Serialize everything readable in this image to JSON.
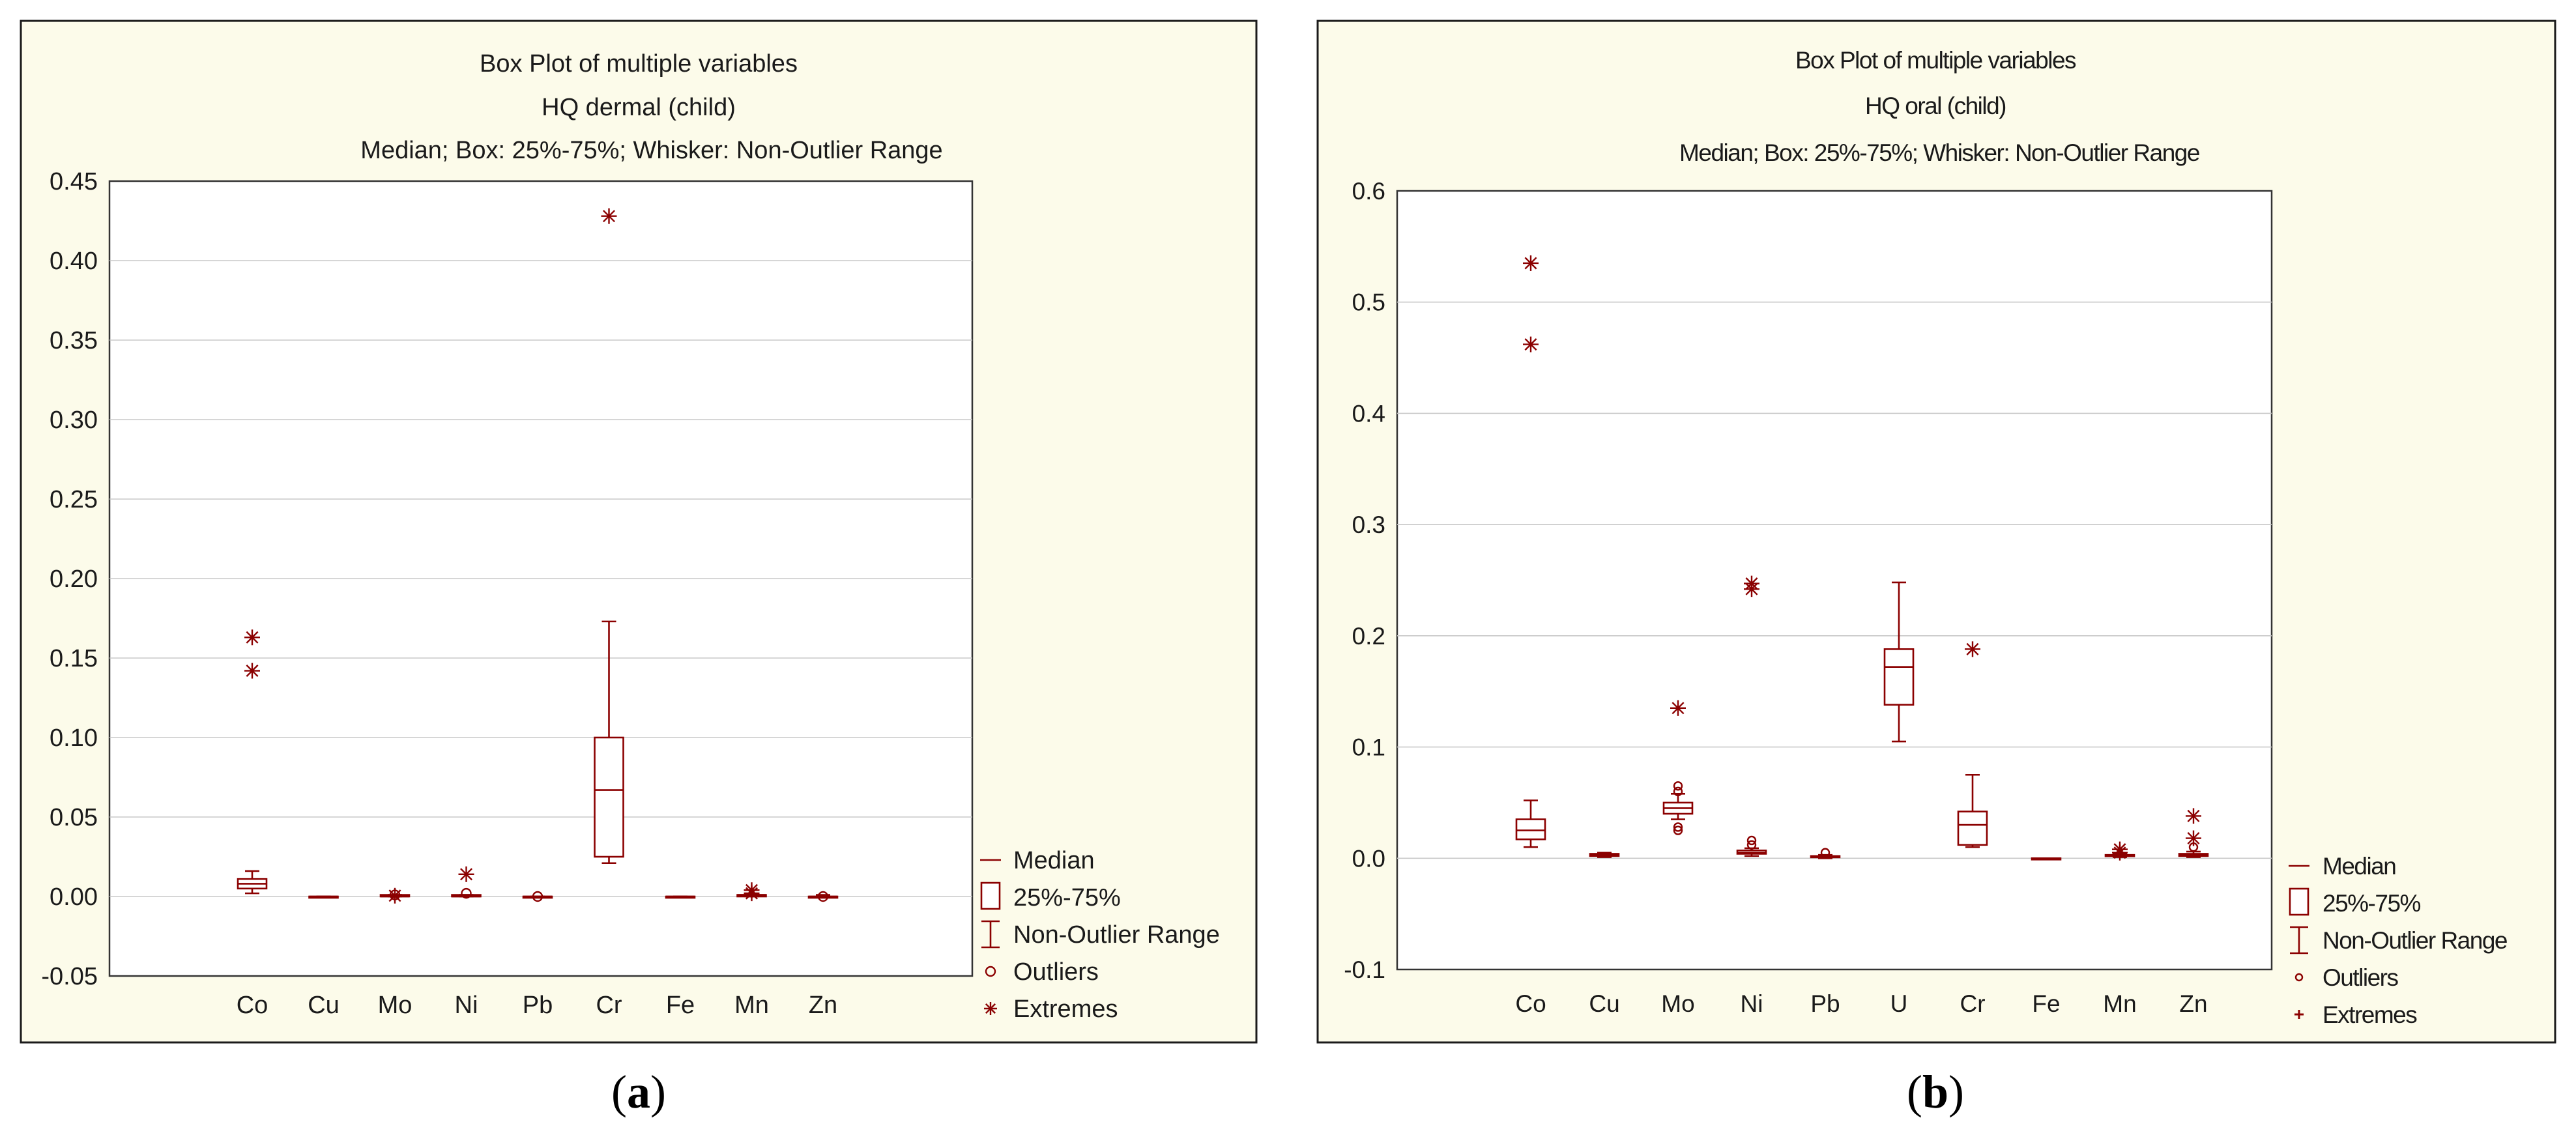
{
  "colors": {
    "series": "#8b0000",
    "panel_background": "#fcfbea",
    "grid": "#c8c8c8",
    "text": "#1a1a1a"
  },
  "captions": {
    "a": {
      "open": "(",
      "letter": "a",
      "close": ")"
    },
    "b": {
      "open": "(",
      "letter": "b",
      "close": ")"
    }
  },
  "chart_data": [
    {
      "type": "box",
      "panel": "a",
      "title": "Box Plot of multiple variables",
      "subtitle": "HQ dermal (child)",
      "description": "Median; Box: 25%-75%; Whisker: Non-Outlier Range",
      "xlabel": "",
      "ylabel": "",
      "ylim": [
        -0.05,
        0.45
      ],
      "yticks": [
        -0.05,
        0.0,
        0.05,
        0.1,
        0.15,
        0.2,
        0.25,
        0.3,
        0.35,
        0.4,
        0.45
      ],
      "ytick_labels": [
        "-0.05",
        "0.00",
        "0.05",
        "0.10",
        "0.15",
        "0.20",
        "0.25",
        "0.30",
        "0.35",
        "0.40",
        "0.45"
      ],
      "grid": true,
      "categories": [
        "Co",
        "Cu",
        "Mo",
        "Ni",
        "Pb",
        "Cr",
        "Fe",
        "Mn",
        "Zn"
      ],
      "boxes": [
        {
          "name": "Co",
          "min": 0.002,
          "q1": 0.005,
          "median": 0.008,
          "q3": 0.011,
          "max": 0.016,
          "outliers": [],
          "extremes": [
            0.163,
            0.142
          ]
        },
        {
          "name": "Cu",
          "min": 0.0,
          "q1": 0.0,
          "median": 0.0,
          "q3": 0.0,
          "max": 0.0,
          "outliers": [],
          "extremes": []
        },
        {
          "name": "Mo",
          "min": 0.0,
          "q1": 0.0,
          "median": 0.0,
          "q3": 0.001,
          "max": 0.001,
          "outliers": [
            0.001
          ],
          "extremes": [
            0.0005
          ]
        },
        {
          "name": "Ni",
          "min": 0.0,
          "q1": 0.0,
          "median": 0.0,
          "q3": 0.001,
          "max": 0.001,
          "outliers": [
            0.002
          ],
          "extremes": [
            0.014
          ]
        },
        {
          "name": "Pb",
          "min": 0.0,
          "q1": 0.0,
          "median": 0.0,
          "q3": 0.0,
          "max": 0.0,
          "outliers": [
            0.0
          ],
          "extremes": []
        },
        {
          "name": "Cr",
          "min": 0.021,
          "q1": 0.025,
          "median": 0.067,
          "q3": 0.1,
          "max": 0.173,
          "outliers": [],
          "extremes": [
            0.428
          ]
        },
        {
          "name": "Fe",
          "min": 0.0,
          "q1": 0.0,
          "median": 0.0,
          "q3": 0.0,
          "max": 0.0,
          "outliers": [],
          "extremes": []
        },
        {
          "name": "Mn",
          "min": 0.0,
          "q1": 0.0,
          "median": 0.001,
          "q3": 0.001,
          "max": 0.002,
          "outliers": [],
          "extremes": [
            0.004,
            0.002
          ]
        },
        {
          "name": "Zn",
          "min": 0.0,
          "q1": 0.0,
          "median": 0.0,
          "q3": 0.0,
          "max": 0.001,
          "outliers": [
            0.0
          ],
          "extremes": []
        }
      ],
      "legend": {
        "placement": "bottom-right",
        "entries": [
          "Median",
          "25%-75%",
          "Non-Outlier Range",
          "Outliers",
          "Extremes"
        ]
      }
    },
    {
      "type": "box",
      "panel": "b",
      "title": "Box Plot of multiple variables",
      "subtitle": "HQ oral (child)",
      "description": "Median; Box: 25%-75%; Whisker: Non-Outlier Range",
      "xlabel": "",
      "ylabel": "",
      "ylim": [
        -0.1,
        0.6
      ],
      "yticks": [
        -0.1,
        0.0,
        0.1,
        0.2,
        0.3,
        0.4,
        0.5,
        0.6
      ],
      "ytick_labels": [
        "-0.1",
        "0.0",
        "0.1",
        "0.2",
        "0.3",
        "0.4",
        "0.5",
        "0.6"
      ],
      "grid": true,
      "categories": [
        "Co",
        "Cu",
        "Mo",
        "Ni",
        "Pb",
        "U",
        "Cr",
        "Fe",
        "Mn",
        "Zn"
      ],
      "boxes": [
        {
          "name": "Co",
          "min": 0.01,
          "q1": 0.017,
          "median": 0.025,
          "q3": 0.035,
          "max": 0.052,
          "outliers": [],
          "extremes": [
            0.535,
            0.462
          ]
        },
        {
          "name": "Cu",
          "min": 0.001,
          "q1": 0.002,
          "median": 0.003,
          "q3": 0.004,
          "max": 0.005,
          "outliers": [],
          "extremes": []
        },
        {
          "name": "Mo",
          "min": 0.035,
          "q1": 0.04,
          "median": 0.045,
          "q3": 0.05,
          "max": 0.058,
          "outliers": [
            0.065,
            0.06,
            0.028,
            0.025
          ],
          "extremes": [
            0.135
          ]
        },
        {
          "name": "Ni",
          "min": 0.002,
          "q1": 0.004,
          "median": 0.005,
          "q3": 0.007,
          "max": 0.009,
          "outliers": [
            0.016,
            0.012
          ],
          "extremes": [
            0.247,
            0.242
          ]
        },
        {
          "name": "Pb",
          "min": 0.0,
          "q1": 0.001,
          "median": 0.001,
          "q3": 0.002,
          "max": 0.003,
          "outliers": [
            0.005
          ],
          "extremes": []
        },
        {
          "name": "U",
          "min": 0.105,
          "q1": 0.138,
          "median": 0.172,
          "q3": 0.188,
          "max": 0.248,
          "outliers": [],
          "extremes": []
        },
        {
          "name": "Cr",
          "min": 0.01,
          "q1": 0.012,
          "median": 0.03,
          "q3": 0.042,
          "max": 0.075,
          "outliers": [],
          "extremes": [
            0.188
          ]
        },
        {
          "name": "Fe",
          "min": 0.0,
          "q1": 0.0,
          "median": 0.0,
          "q3": 0.0,
          "max": 0.0,
          "outliers": [],
          "extremes": []
        },
        {
          "name": "Mn",
          "min": 0.001,
          "q1": 0.002,
          "median": 0.002,
          "q3": 0.003,
          "max": 0.004,
          "outliers": [],
          "extremes": [
            0.008,
            0.005
          ]
        },
        {
          "name": "Zn",
          "min": 0.001,
          "q1": 0.002,
          "median": 0.003,
          "q3": 0.004,
          "max": 0.006,
          "outliers": [
            0.01
          ],
          "extremes": [
            0.038,
            0.018
          ]
        }
      ],
      "legend": {
        "placement": "bottom-right",
        "entries": [
          "Median",
          "25%-75%",
          "Non-Outlier Range",
          "Outliers",
          "Extremes"
        ]
      }
    }
  ]
}
